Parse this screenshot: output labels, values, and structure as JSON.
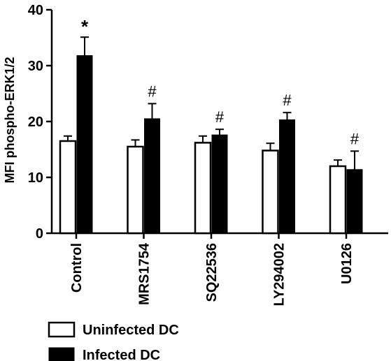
{
  "chart_data": {
    "type": "bar",
    "title": "",
    "xlabel": "",
    "ylabel": "MFI phospho-ERK1/2",
    "ylim": [
      0,
      40
    ],
    "yticks": [
      0,
      10,
      20,
      30,
      40
    ],
    "categories": [
      "Control",
      "MRS1754",
      "SQ22536",
      "LY294002",
      "U0126"
    ],
    "series": [
      {
        "name": "Uninfected DC",
        "color": "#ffffff",
        "values": [
          16.5,
          15.5,
          16.2,
          14.8,
          12.0
        ],
        "errors": [
          0.9,
          1.2,
          1.2,
          1.3,
          1.1
        ]
      },
      {
        "name": "Infected DC",
        "color": "#000000",
        "values": [
          31.8,
          20.5,
          17.6,
          20.3,
          11.4
        ],
        "errors": [
          3.3,
          2.7,
          1.0,
          1.3,
          3.3
        ]
      }
    ],
    "annotations": [
      "*",
      "#",
      "#",
      "#",
      "#"
    ],
    "legend_position": "bottom"
  }
}
